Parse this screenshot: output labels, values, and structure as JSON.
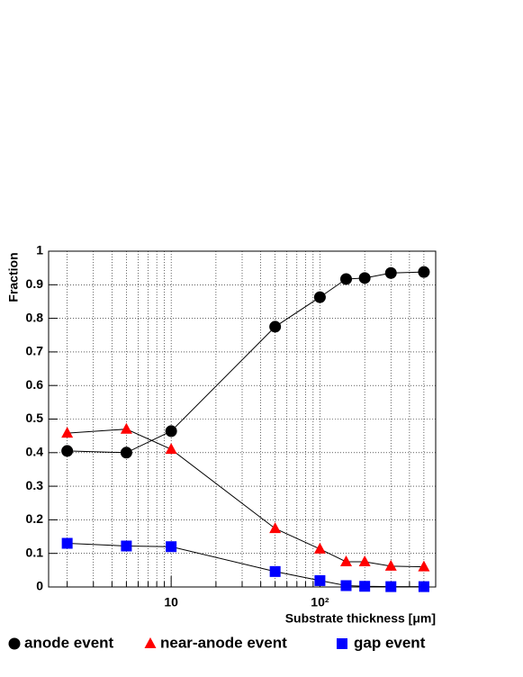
{
  "chart_data": {
    "type": "line",
    "x_label": "Substrate thickness [μm]",
    "y_label": "Fraction",
    "x": [
      2,
      5,
      10,
      50,
      100,
      150,
      200,
      300,
      500
    ],
    "series": [
      {
        "name": "anode event",
        "color": "#000000",
        "marker": "circle",
        "values": [
          0.405,
          0.4,
          0.464,
          0.775,
          0.863,
          0.917,
          0.92,
          0.935,
          0.938
        ]
      },
      {
        "name": "near-anode event",
        "color": "#ff0000",
        "marker": "triangle",
        "values": [
          0.458,
          0.47,
          0.41,
          0.174,
          0.113,
          0.075,
          0.075,
          0.062,
          0.06
        ]
      },
      {
        "name": "gap event",
        "color": "#0000ff",
        "marker": "square",
        "values": [
          0.13,
          0.122,
          0.12,
          0.046,
          0.019,
          0.004,
          0.002,
          0.001,
          0.001
        ]
      }
    ],
    "xscale": "log",
    "xlim": [
      1.5,
      600
    ],
    "ylim": [
      0,
      1
    ],
    "xticks": [
      10,
      {
        "value": 100,
        "label": "10²"
      }
    ],
    "xminor_ticks": [
      2,
      3,
      4,
      5,
      6,
      7,
      8,
      9,
      20,
      30,
      40,
      50,
      60,
      70,
      80,
      90,
      200,
      300,
      400,
      500,
      600
    ],
    "yticks": [
      0,
      0.1,
      0.2,
      0.3,
      0.4,
      0.5,
      0.6,
      0.7,
      0.8,
      0.9,
      1
    ],
    "grid": true,
    "line_color": "#000000",
    "legend": "bottom"
  }
}
